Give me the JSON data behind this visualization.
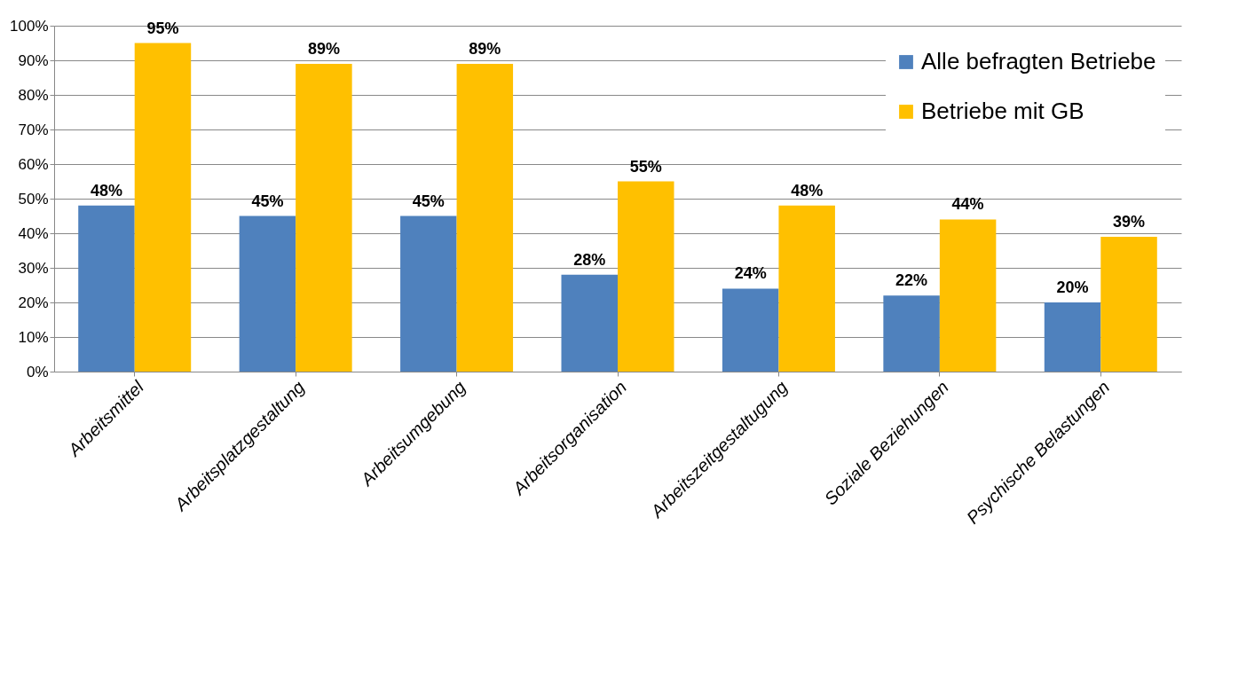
{
  "chart_data": {
    "type": "bar",
    "categories": [
      "Arbeitsmittel",
      "Arbeitsplatzgestaltung",
      "Arbeitsumgebung",
      "Arbeitsorganisation",
      "Arbeitszeitgestaltugung",
      "Soziale Beziehungen",
      "Psychische Belastungen"
    ],
    "series": [
      {
        "name": "Alle befragten Betriebe",
        "color": "#4f81bd",
        "values": [
          48,
          45,
          45,
          28,
          24,
          22,
          20
        ],
        "value_labels": [
          "48%",
          "45%",
          "45%",
          "28%",
          "24%",
          "22%",
          "20%"
        ]
      },
      {
        "name": "Betriebe mit GB",
        "color": "#ffc000",
        "values": [
          95,
          89,
          89,
          55,
          48,
          44,
          39
        ],
        "value_labels": [
          "95%",
          "89%",
          "89%",
          "55%",
          "48%",
          "44%",
          "39%"
        ]
      }
    ],
    "ylim": [
      0,
      100
    ],
    "yticks": [
      {
        "value": 0,
        "label": "0%"
      },
      {
        "value": 10,
        "label": "10%"
      },
      {
        "value": 20,
        "label": "20%"
      },
      {
        "value": 30,
        "label": "30%"
      },
      {
        "value": 40,
        "label": "40%"
      },
      {
        "value": 50,
        "label": "50%"
      },
      {
        "value": 60,
        "label": "60%"
      },
      {
        "value": 70,
        "label": "70%"
      },
      {
        "value": 80,
        "label": "80%"
      },
      {
        "value": 90,
        "label": "90%"
      },
      {
        "value": 100,
        "label": "100%"
      }
    ],
    "grid": "y",
    "legend": "top right"
  }
}
